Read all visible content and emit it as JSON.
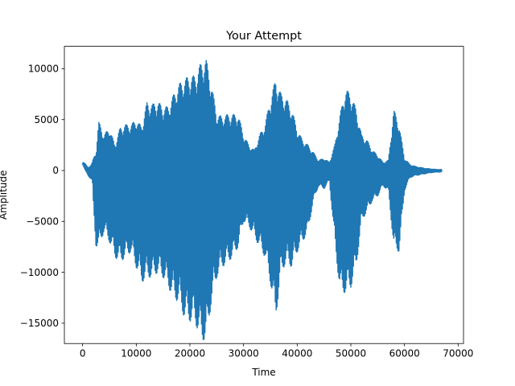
{
  "chart_data": {
    "type": "line",
    "title": "Your Attempt",
    "xlabel": "Time",
    "ylabel": "Amplitude",
    "xlim": [
      -3400,
      71000
    ],
    "ylim": [
      -17000,
      12200
    ],
    "xticks": [
      0,
      10000,
      20000,
      30000,
      40000,
      50000,
      60000,
      70000
    ],
    "xtick_labels": [
      "0",
      "10000",
      "20000",
      "30000",
      "40000",
      "50000",
      "60000",
      "70000"
    ],
    "yticks": [
      -15000,
      -10000,
      -5000,
      0,
      5000,
      10000
    ],
    "ytick_labels": [
      "−15000",
      "−10000",
      "−5000",
      "0",
      "5000",
      "10000"
    ],
    "grid": false,
    "series": [
      {
        "color": "#1f77b4",
        "envelope": {
          "x": [
            0,
            1000,
            1500,
            1800,
            2000,
            2500,
            3000,
            4000,
            5000,
            6000,
            7000,
            8000,
            9000,
            10000,
            11000,
            12000,
            13000,
            14000,
            15000,
            16000,
            17000,
            18000,
            19000,
            20000,
            21000,
            22000,
            23000,
            24000,
            25000,
            26000,
            27000,
            28000,
            29000,
            30000,
            31000,
            32000,
            33000,
            34000,
            35000,
            36000,
            37000,
            38000,
            39000,
            40000,
            41000,
            42000,
            43000,
            44000,
            45000,
            46000,
            47000,
            48000,
            49000,
            50000,
            51000,
            52000,
            53000,
            54000,
            55000,
            56000,
            57000,
            58000,
            59000,
            60000,
            61000,
            62000,
            63000,
            64000,
            65000,
            66000,
            67000
          ],
          "upper": [
            1000,
            300,
            500,
            800,
            1200,
            1800,
            4800,
            3500,
            4200,
            2500,
            4200,
            4500,
            4500,
            5000,
            4300,
            6700,
            6500,
            6800,
            6200,
            6300,
            7500,
            8500,
            9000,
            9300,
            9300,
            10500,
            11000,
            8500,
            5500,
            5300,
            5500,
            5500,
            5500,
            3500,
            2500,
            2000,
            3500,
            4500,
            7000,
            9000,
            7500,
            7000,
            6000,
            4000,
            3000,
            2500,
            1800,
            1000,
            1200,
            800,
            2500,
            5500,
            8000,
            7500,
            6000,
            3500,
            3000,
            2000,
            1500,
            800,
            1000,
            6000,
            4500,
            1200,
            600,
            400,
            300,
            200,
            150,
            100,
            100
          ],
          "lower": [
            600,
            -500,
            -800,
            -1000,
            -3500,
            -7500,
            -7500,
            -6000,
            -7000,
            -8500,
            -9000,
            -8500,
            -8000,
            -9500,
            -11000,
            -10500,
            -10500,
            -10000,
            -10500,
            -11500,
            -12500,
            -13000,
            -14500,
            -14800,
            -15000,
            -16500,
            -16800,
            -13000,
            -10500,
            -9500,
            -9000,
            -8500,
            -7500,
            -5000,
            -5500,
            -6500,
            -7500,
            -8500,
            -11000,
            -14500,
            -10000,
            -9000,
            -9500,
            -8000,
            -7000,
            -6000,
            -3000,
            -1500,
            -1800,
            -1000,
            -7000,
            -12000,
            -12000,
            -11500,
            -9500,
            -5000,
            -4000,
            -3000,
            -2500,
            -1500,
            -2000,
            -7500,
            -8000,
            -2000,
            -700,
            -500,
            -400,
            -300,
            -200,
            -150,
            -150
          ]
        }
      }
    ]
  }
}
